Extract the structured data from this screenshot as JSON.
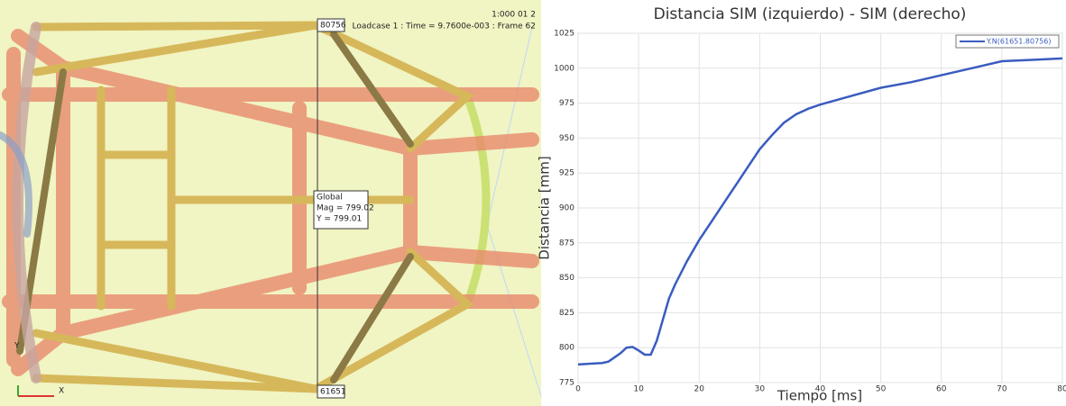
{
  "viewport": {
    "header": "1:000 01 2",
    "loadcase": "Loadcase 1 : Time = 9.7600e-003 : Frame 62",
    "node_top": "80756",
    "node_bottom": "61651",
    "probe": [
      "Global",
      "Mag = 799.02",
      "Y = 799.01"
    ],
    "axis_y": "Y",
    "axis_x": "X"
  },
  "chart_data": {
    "type": "line",
    "title": "Distancia SIM (izquierdo) - SIM (derecho)",
    "xlabel": "Tiempo [ms]",
    "ylabel": "Distancia [mm]",
    "x": [
      0,
      2,
      4,
      5,
      6,
      7,
      8,
      9,
      10,
      11,
      12,
      13,
      14,
      15,
      16,
      18,
      20,
      22,
      24,
      26,
      28,
      30,
      32,
      34,
      36,
      38,
      40,
      45,
      50,
      55,
      60,
      65,
      70,
      75,
      80
    ],
    "series": [
      {
        "name": "Y.N(61651.80756)",
        "color": "#3a5cc0",
        "values": [
          788,
          788.5,
          789,
          790,
          793,
          796,
          800,
          800.5,
          798,
          795,
          795,
          805,
          820,
          835,
          845,
          862,
          877,
          890,
          903,
          916,
          929,
          942,
          952,
          961,
          967,
          971,
          974,
          980,
          986,
          990,
          995,
          1000,
          1005,
          1006,
          1007
        ]
      }
    ],
    "xlim": [
      0,
      80
    ],
    "xticks": [
      0,
      10,
      20,
      30,
      40,
      50,
      60,
      70,
      80
    ],
    "ylim": [
      775,
      1025
    ],
    "yticks": [
      775,
      800,
      825,
      850,
      875,
      900,
      925,
      950,
      975,
      1000,
      1025
    ],
    "grid": true,
    "legend": "upper right"
  }
}
